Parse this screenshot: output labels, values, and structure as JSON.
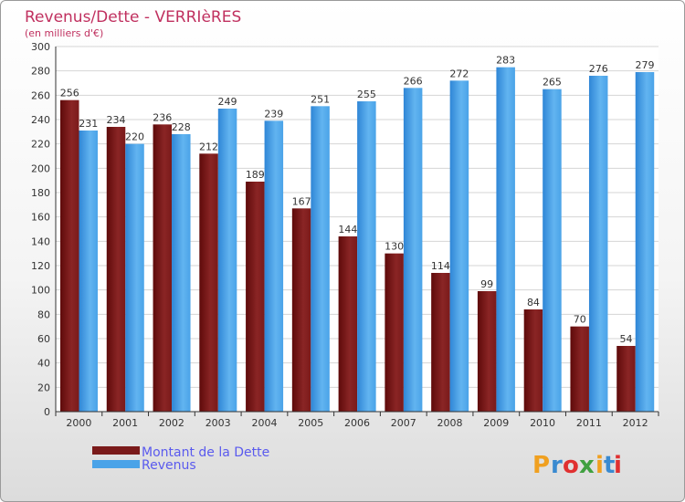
{
  "chart_data": {
    "type": "bar",
    "title": "Revenus/Dette - VERRIèRES",
    "subtitle": "(en milliers d'€)",
    "categories": [
      "2000",
      "2001",
      "2002",
      "2003",
      "2004",
      "2005",
      "2006",
      "2007",
      "2008",
      "2009",
      "2010",
      "2011",
      "2012"
    ],
    "series": [
      {
        "name": "Montant de la Dette",
        "color": "#7a1a1a",
        "values": [
          256,
          234,
          236,
          212,
          189,
          167,
          144,
          130,
          114,
          99,
          84,
          70,
          54
        ]
      },
      {
        "name": "Revenus",
        "color": "#4aa3e8",
        "values": [
          231,
          220,
          228,
          249,
          239,
          251,
          255,
          266,
          272,
          283,
          265,
          276,
          279
        ]
      }
    ],
    "ylim": [
      0,
      300
    ],
    "yticks": [
      0,
      20,
      40,
      60,
      80,
      100,
      120,
      140,
      160,
      180,
      200,
      220,
      240,
      260,
      280,
      300
    ],
    "grid": true,
    "legend_position": "bottom-left"
  },
  "logo": {
    "letters": [
      "P",
      "r",
      "o",
      "x",
      "i",
      "t",
      "i"
    ],
    "colors": [
      "#f0a020",
      "#3a8ad0",
      "#e03030",
      "#40a040",
      "#f0a020",
      "#3a8ad0",
      "#e03030"
    ]
  }
}
